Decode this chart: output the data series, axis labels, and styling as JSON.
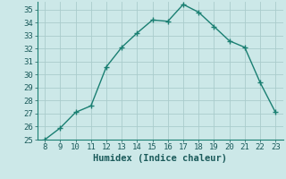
{
  "x": [
    8,
    9,
    10,
    11,
    12,
    13,
    14,
    15,
    16,
    17,
    18,
    19,
    20,
    21,
    22,
    23
  ],
  "y": [
    25.0,
    25.9,
    27.1,
    27.6,
    30.6,
    32.1,
    33.2,
    34.2,
    34.1,
    35.4,
    34.8,
    33.7,
    32.6,
    32.1,
    29.4,
    27.1
  ],
  "line_color": "#1a7f72",
  "marker": "+",
  "marker_size": 4,
  "marker_linewidth": 1.0,
  "line_width": 1.0,
  "background_color": "#cce8e8",
  "grid_color": "#aacccc",
  "xlabel": "Humidex (Indice chaleur)",
  "xlabel_fontsize": 7.5,
  "tick_fontsize": 6.5,
  "xlim": [
    7.5,
    23.5
  ],
  "ylim": [
    25,
    35.6
  ],
  "yticks": [
    25,
    26,
    27,
    28,
    29,
    30,
    31,
    32,
    33,
    34,
    35
  ],
  "xticks": [
    8,
    9,
    10,
    11,
    12,
    13,
    14,
    15,
    16,
    17,
    18,
    19,
    20,
    21,
    22,
    23
  ]
}
